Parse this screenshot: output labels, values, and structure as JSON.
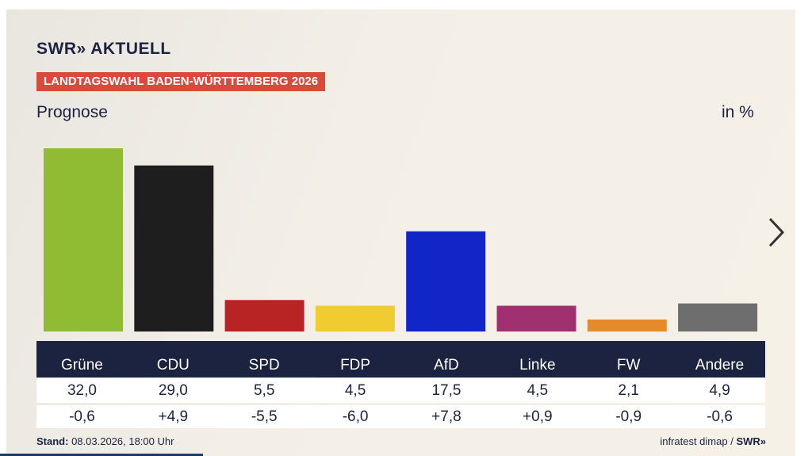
{
  "header": {
    "logo": "SWR» AKTUELL",
    "banner": "LANDTAGSWAHL BADEN-WÜRTTEMBERG 2026",
    "subtitle": "Prognose",
    "unit": "in %"
  },
  "chart_data": {
    "type": "bar",
    "title": "Prognose",
    "ylabel": "in %",
    "categories": [
      "Grüne",
      "CDU",
      "SPD",
      "FDP",
      "AfD",
      "Linke",
      "FW",
      "Andere"
    ],
    "values": [
      32.0,
      29.0,
      5.5,
      4.5,
      17.5,
      4.5,
      2.1,
      4.9
    ],
    "values_label": [
      "32,0",
      "29,0",
      "5,5",
      "4,5",
      "17,5",
      "4,5",
      "2,1",
      "4,9"
    ],
    "diff_label": [
      "-0,6",
      "+4,9",
      "-5,5",
      "-6,0",
      "+7,8",
      "+0,9",
      "-0,9",
      "-0,6"
    ],
    "colors": [
      "#8fbc33",
      "#1e1e1e",
      "#b82424",
      "#f0cc30",
      "#1226c7",
      "#a03070",
      "#e68a2a",
      "#6e6e6e"
    ],
    "grid": false
  },
  "footer": {
    "stand_label": "Stand:",
    "stand_value": " 08.03.2026, 18:00 Uhr",
    "source": "infratest dimap / ",
    "source_brand": "SWR»"
  },
  "icons": {
    "next": "chevron-right-icon"
  }
}
